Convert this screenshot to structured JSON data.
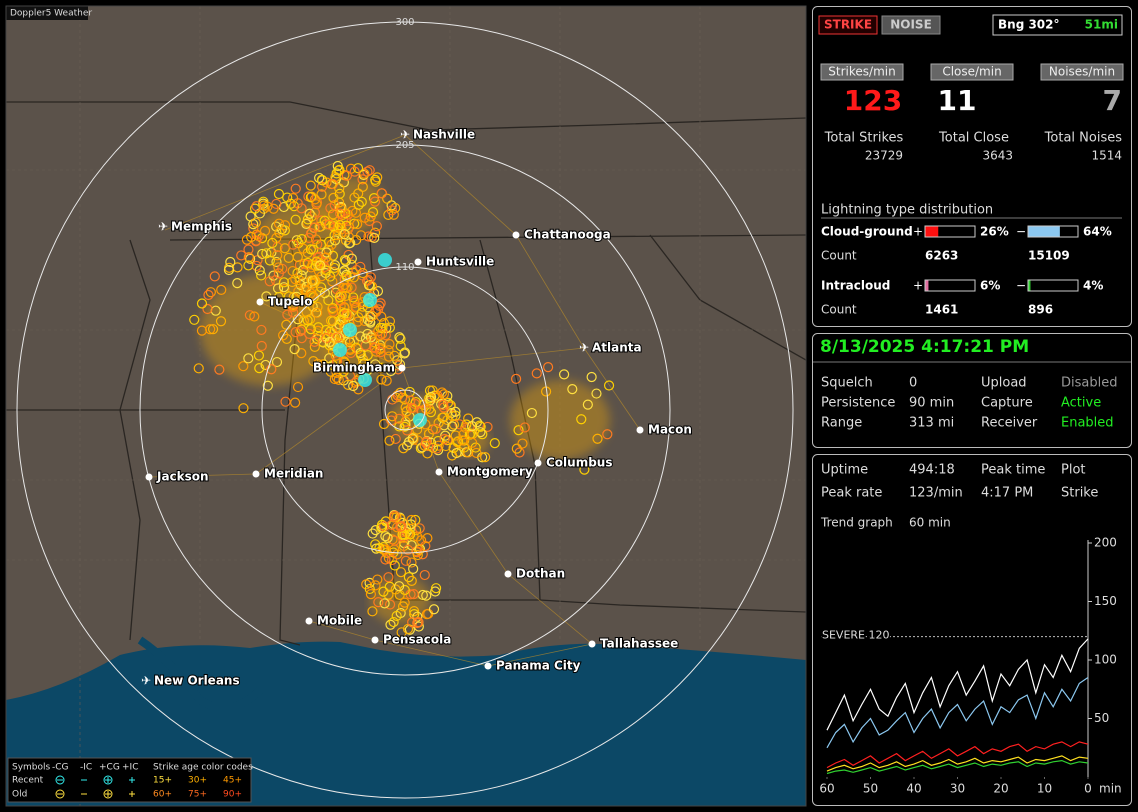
{
  "map": {
    "title": "Doppler5 Weather",
    "range_labels": [
      "300",
      "205",
      "110"
    ],
    "cities": [
      "Nashville",
      "Memphis",
      "Chattanooga",
      "Huntsville",
      "Tupelo",
      "Birmingham",
      "Atlanta",
      "Macon",
      "Jackson",
      "Meridian",
      "Montgomery",
      "Columbus",
      "Dothan",
      "Mobile",
      "Pensacola",
      "Tallahassee",
      "Panama City",
      "New Orleans"
    ],
    "legend": {
      "header": [
        "Symbols",
        "-CG",
        "-IC",
        "+CG",
        "+IC",
        "Strike age color codes"
      ],
      "rows": [
        {
          "label": "Recent",
          "ages": [
            "15+",
            "30+",
            "45+"
          ]
        },
        {
          "label": "Old",
          "ages": [
            "60+",
            "75+",
            "90+"
          ]
        }
      ]
    }
  },
  "status": {
    "mode_buttons": [
      "STRIKE",
      "NOISE"
    ],
    "bearing": "Bng 302°",
    "distance": "51mi",
    "rates": [
      {
        "label": "Strikes/min",
        "value": "123",
        "total_label": "Total Strikes",
        "total": "23729"
      },
      {
        "label": "Close/min",
        "value": "11",
        "total_label": "Total Close",
        "total": "3643"
      },
      {
        "label": "Noises/min",
        "value": "7",
        "total_label": "Total Noises",
        "total": "1514"
      }
    ],
    "distribution": {
      "title": "Lightning type distribution",
      "count_label": "Count",
      "types": [
        {
          "name": "Cloud-ground",
          "pos_sign": "+",
          "neg_sign": "−",
          "pos": {
            "value": 26,
            "label": "26%"
          },
          "neg": {
            "value": 64,
            "label": "64%"
          },
          "pos_count": "6263",
          "neg_count": "15109"
        },
        {
          "name": "Intracloud",
          "pos_sign": "+",
          "neg_sign": "−",
          "pos": {
            "value": 6,
            "label": "6%"
          },
          "neg": {
            "value": 4,
            "label": "4%"
          },
          "pos_count": "1461",
          "neg_count": "896"
        }
      ]
    }
  },
  "settings": {
    "datetime": "8/13/2025 4:17:21 PM",
    "rows": [
      [
        "Squelch",
        "0",
        "Upload",
        "Disabled"
      ],
      [
        "Persistence",
        "90 min",
        "Capture",
        "Active"
      ],
      [
        "Range",
        "313 mi",
        "Receiver",
        "Enabled"
      ]
    ]
  },
  "stats": {
    "rows": [
      [
        "Uptime",
        "494:18",
        "Peak time",
        "Plot"
      ],
      [
        "Peak rate",
        "123/min",
        "4:17 PM",
        "Strike"
      ]
    ],
    "trend_label": "Trend graph",
    "trend_window": "60 min"
  },
  "trend_graph": {
    "type": "line",
    "x": [
      60,
      58,
      56,
      54,
      52,
      50,
      48,
      46,
      44,
      42,
      40,
      38,
      36,
      34,
      32,
      30,
      28,
      26,
      24,
      22,
      20,
      18,
      16,
      14,
      12,
      10,
      8,
      6,
      4,
      2,
      0
    ],
    "series": [
      {
        "color": "#ffffff",
        "values": [
          40,
          55,
          70,
          48,
          62,
          75,
          58,
          52,
          68,
          80,
          55,
          72,
          85,
          60,
          78,
          90,
          70,
          82,
          95,
          65,
          88,
          78,
          92,
          100,
          72,
          96,
          85,
          104,
          90,
          110,
          118
        ]
      },
      {
        "color": "#8cc8f0",
        "values": [
          25,
          38,
          45,
          30,
          42,
          50,
          36,
          40,
          48,
          55,
          38,
          50,
          58,
          42,
          55,
          62,
          48,
          58,
          65,
          45,
          60,
          55,
          66,
          70,
          50,
          72,
          60,
          75,
          65,
          80,
          85
        ]
      },
      {
        "color": "#ff2020",
        "values": [
          8,
          12,
          15,
          10,
          14,
          18,
          12,
          16,
          20,
          14,
          18,
          22,
          16,
          20,
          24,
          18,
          22,
          26,
          20,
          24,
          22,
          26,
          28,
          22,
          26,
          24,
          28,
          30,
          26,
          30,
          28
        ]
      },
      {
        "color": "#ffe020",
        "values": [
          5,
          8,
          10,
          7,
          9,
          12,
          8,
          10,
          13,
          9,
          11,
          14,
          10,
          12,
          15,
          11,
          13,
          16,
          12,
          14,
          13,
          15,
          17,
          12,
          15,
          14,
          16,
          18,
          14,
          17,
          16
        ]
      },
      {
        "color": "#30d030",
        "values": [
          3,
          5,
          6,
          4,
          6,
          8,
          5,
          7,
          9,
          6,
          8,
          10,
          7,
          9,
          11,
          8,
          10,
          12,
          9,
          11,
          10,
          12,
          13,
          9,
          12,
          11,
          13,
          14,
          11,
          13,
          12
        ]
      }
    ],
    "xlim": [
      60,
      0
    ],
    "ylim": [
      0,
      200
    ],
    "xticks": [
      60,
      50,
      40,
      30,
      20,
      10,
      0
    ],
    "yticks": [
      50,
      100,
      150,
      200
    ],
    "xlabel": "min",
    "threshold": {
      "value": 120,
      "label": "SEVERE 120"
    }
  }
}
